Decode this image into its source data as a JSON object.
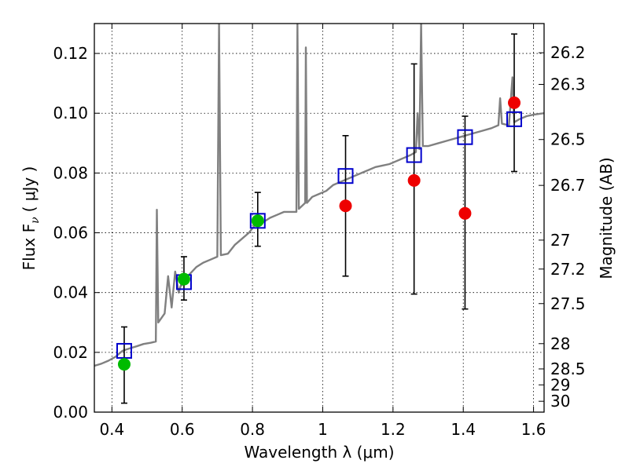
{
  "chart_data": {
    "type": "scatter",
    "xlabel": "Wavelength  λ (μm)",
    "ylabel_left": "Flux  F",
    "ylabel_left_subscript": "ν",
    "ylabel_left_units": "( μJy )",
    "ylabel_right": "Magnitude (AB)",
    "xlim": [
      0.35,
      1.63
    ],
    "ylim": [
      0.0,
      0.13
    ],
    "grid": "dotted",
    "x_ticks": [
      0.4,
      0.6,
      0.8,
      1.0,
      1.2,
      1.4,
      1.6
    ],
    "x_tick_labels": [
      "0.4",
      "0.6",
      "0.8",
      "1",
      "1.2",
      "1.4",
      "1.6"
    ],
    "y_ticks": [
      0.0,
      0.02,
      0.04,
      0.06,
      0.08,
      0.1,
      0.12
    ],
    "y_tick_labels": [
      "0.00",
      "0.02",
      "0.04",
      "0.06",
      "0.08",
      "0.10",
      "0.12"
    ],
    "right_axis_ticks": [
      {
        "mag": 26.2,
        "label": "26.2"
      },
      {
        "mag": 26.3,
        "label": "26.3"
      },
      {
        "mag": 26.5,
        "label": "26.5"
      },
      {
        "mag": 26.7,
        "label": "26.7"
      },
      {
        "mag": 27.0,
        "label": "27"
      },
      {
        "mag": 27.2,
        "label": "27.2"
      },
      {
        "mag": 27.5,
        "label": "27.5"
      },
      {
        "mag": 28.0,
        "label": "28"
      },
      {
        "mag": 28.5,
        "label": "28.5"
      },
      {
        "mag": 29.0,
        "label": "29"
      },
      {
        "mag": 30.0,
        "label": "30"
      }
    ],
    "series": [
      {
        "name": "model spectrum",
        "kind": "line",
        "color": "#808080",
        "points": [
          [
            0.35,
            0.0155
          ],
          [
            0.37,
            0.0162
          ],
          [
            0.39,
            0.0172
          ],
          [
            0.41,
            0.0185
          ],
          [
            0.43,
            0.0205
          ],
          [
            0.45,
            0.0213
          ],
          [
            0.47,
            0.022
          ],
          [
            0.49,
            0.0228
          ],
          [
            0.51,
            0.0232
          ],
          [
            0.525,
            0.0236
          ],
          [
            0.528,
            0.0677
          ],
          [
            0.532,
            0.03
          ],
          [
            0.55,
            0.033
          ],
          [
            0.56,
            0.0455
          ],
          [
            0.57,
            0.035
          ],
          [
            0.58,
            0.047
          ],
          [
            0.59,
            0.04
          ],
          [
            0.6,
            0.044
          ],
          [
            0.62,
            0.046
          ],
          [
            0.64,
            0.0485
          ],
          [
            0.66,
            0.05
          ],
          [
            0.68,
            0.051
          ],
          [
            0.7,
            0.052
          ],
          [
            0.705,
            0.13
          ],
          [
            0.71,
            0.0525
          ],
          [
            0.73,
            0.053
          ],
          [
            0.75,
            0.056
          ],
          [
            0.77,
            0.058
          ],
          [
            0.79,
            0.06
          ],
          [
            0.81,
            0.063
          ],
          [
            0.83,
            0.0635
          ],
          [
            0.85,
            0.065
          ],
          [
            0.87,
            0.066
          ],
          [
            0.89,
            0.067
          ],
          [
            0.91,
            0.067
          ],
          [
            0.925,
            0.067
          ],
          [
            0.928,
            0.13
          ],
          [
            0.932,
            0.068
          ],
          [
            0.95,
            0.07
          ],
          [
            0.952,
            0.122
          ],
          [
            0.955,
            0.07
          ],
          [
            0.97,
            0.072
          ],
          [
            0.99,
            0.073
          ],
          [
            1.01,
            0.074
          ],
          [
            1.03,
            0.076
          ],
          [
            1.05,
            0.077
          ],
          [
            1.07,
            0.078
          ],
          [
            1.09,
            0.079
          ],
          [
            1.11,
            0.08
          ],
          [
            1.13,
            0.081
          ],
          [
            1.15,
            0.082
          ],
          [
            1.17,
            0.0825
          ],
          [
            1.19,
            0.083
          ],
          [
            1.21,
            0.084
          ],
          [
            1.23,
            0.085
          ],
          [
            1.25,
            0.086
          ],
          [
            1.265,
            0.087
          ],
          [
            1.27,
            0.1
          ],
          [
            1.275,
            0.088
          ],
          [
            1.28,
            0.13
          ],
          [
            1.285,
            0.089
          ],
          [
            1.3,
            0.089
          ],
          [
            1.33,
            0.09
          ],
          [
            1.36,
            0.091
          ],
          [
            1.39,
            0.092
          ],
          [
            1.42,
            0.093
          ],
          [
            1.45,
            0.094
          ],
          [
            1.48,
            0.095
          ],
          [
            1.5,
            0.096
          ],
          [
            1.505,
            0.105
          ],
          [
            1.51,
            0.0965
          ],
          [
            1.53,
            0.096
          ],
          [
            1.54,
            0.112
          ],
          [
            1.545,
            0.097
          ],
          [
            1.56,
            0.098
          ],
          [
            1.58,
            0.099
          ],
          [
            1.6,
            0.0995
          ],
          [
            1.63,
            0.1
          ]
        ]
      },
      {
        "name": "model photometry",
        "kind": "open-square",
        "color": "#0000cc",
        "x": [
          0.435,
          0.605,
          0.815,
          1.065,
          1.26,
          1.405,
          1.545
        ],
        "y": [
          0.0205,
          0.0435,
          0.064,
          0.079,
          0.086,
          0.092,
          0.098
        ]
      },
      {
        "name": "observed (green)",
        "kind": "filled-circle",
        "color": "#00bb00",
        "x": [
          0.435,
          0.605,
          0.815
        ],
        "y": [
          0.016,
          0.0445,
          0.064
        ],
        "yerr_low": [
          0.003,
          0.0375,
          0.0555
        ],
        "yerr_high": [
          0.0285,
          0.052,
          0.0735
        ]
      },
      {
        "name": "observed (red)",
        "kind": "filled-circle",
        "color": "#ee0000",
        "x": [
          1.065,
          1.26,
          1.405,
          1.545
        ],
        "y": [
          0.069,
          0.0775,
          0.0665,
          0.1035
        ],
        "yerr_low": [
          0.0455,
          0.0395,
          0.0345,
          0.0805
        ],
        "yerr_high": [
          0.0925,
          0.1165,
          0.099,
          0.1265
        ]
      }
    ]
  }
}
